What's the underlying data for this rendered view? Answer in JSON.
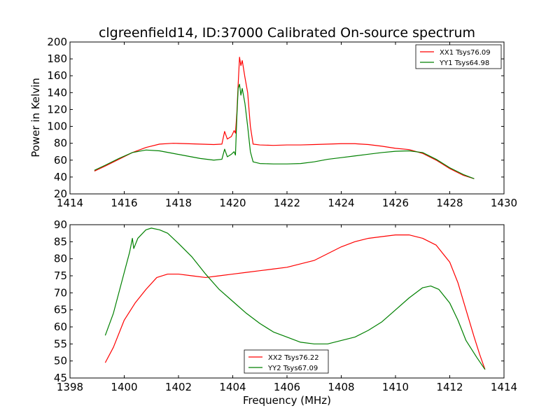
{
  "chart_data": [
    {
      "type": "line",
      "title": "clgreenfield14, ID:37000 Calibrated On-source spectrum",
      "xlabel": "",
      "ylabel": "Power in Kelvin",
      "xlim": [
        1414,
        1430
      ],
      "ylim": [
        20,
        200
      ],
      "xticks": [
        1414,
        1416,
        1418,
        1420,
        1422,
        1424,
        1426,
        1428,
        1430
      ],
      "yticks": [
        20,
        40,
        60,
        80,
        100,
        120,
        140,
        160,
        180,
        200
      ],
      "legend": "top-right",
      "grid": false,
      "series": [
        {
          "name": "XX1 Tsys76.09",
          "color": "#ff0000",
          "points": [
            [
              1414.9,
              47
            ],
            [
              1415.3,
              53
            ],
            [
              1415.8,
              61
            ],
            [
              1416.3,
              69
            ],
            [
              1416.8,
              75
            ],
            [
              1417.3,
              79
            ],
            [
              1417.8,
              80
            ],
            [
              1418.3,
              79.5
            ],
            [
              1418.8,
              79
            ],
            [
              1419.3,
              78.5
            ],
            [
              1419.6,
              79
            ],
            [
              1419.7,
              94
            ],
            [
              1419.8,
              85
            ],
            [
              1419.95,
              88
            ],
            [
              1420.05,
              95
            ],
            [
              1420.1,
              92
            ],
            [
              1420.15,
              115
            ],
            [
              1420.2,
              150
            ],
            [
              1420.25,
              182
            ],
            [
              1420.3,
              172
            ],
            [
              1420.35,
              178
            ],
            [
              1420.45,
              158
            ],
            [
              1420.55,
              140
            ],
            [
              1420.65,
              100
            ],
            [
              1420.75,
              79
            ],
            [
              1421,
              78
            ],
            [
              1421.5,
              77.5
            ],
            [
              1422,
              78
            ],
            [
              1422.5,
              78
            ],
            [
              1423,
              78.5
            ],
            [
              1423.5,
              79
            ],
            [
              1424,
              79.5
            ],
            [
              1424.5,
              79.5
            ],
            [
              1425,
              78.5
            ],
            [
              1425.5,
              76.5
            ],
            [
              1426,
              74
            ],
            [
              1426.5,
              72.5
            ],
            [
              1427,
              68
            ],
            [
              1427.5,
              60
            ],
            [
              1428,
              50
            ],
            [
              1428.5,
              42
            ],
            [
              1428.9,
              38
            ]
          ]
        },
        {
          "name": "YY1 Tsys64.98",
          "color": "#008000",
          "points": [
            [
              1414.9,
              48
            ],
            [
              1415.3,
              54
            ],
            [
              1415.8,
              62
            ],
            [
              1416.3,
              69
            ],
            [
              1416.8,
              72
            ],
            [
              1417.3,
              71
            ],
            [
              1417.8,
              68
            ],
            [
              1418.3,
              65
            ],
            [
              1418.8,
              62
            ],
            [
              1419.3,
              60
            ],
            [
              1419.6,
              61
            ],
            [
              1419.7,
              73
            ],
            [
              1419.8,
              64
            ],
            [
              1419.95,
              67
            ],
            [
              1420.05,
              70
            ],
            [
              1420.1,
              66
            ],
            [
              1420.15,
              110
            ],
            [
              1420.2,
              145
            ],
            [
              1420.25,
              150
            ],
            [
              1420.3,
              137
            ],
            [
              1420.35,
              145
            ],
            [
              1420.45,
              127
            ],
            [
              1420.55,
              100
            ],
            [
              1420.65,
              70
            ],
            [
              1420.75,
              58
            ],
            [
              1421,
              56
            ],
            [
              1421.5,
              55.5
            ],
            [
              1422,
              55.5
            ],
            [
              1422.5,
              56
            ],
            [
              1423,
              58
            ],
            [
              1423.5,
              61
            ],
            [
              1424,
              63
            ],
            [
              1424.5,
              65
            ],
            [
              1425,
              67
            ],
            [
              1425.5,
              69
            ],
            [
              1426,
              70.5
            ],
            [
              1426.5,
              71
            ],
            [
              1427,
              69
            ],
            [
              1427.5,
              61
            ],
            [
              1428,
              51
            ],
            [
              1428.5,
              43
            ],
            [
              1428.9,
              38
            ]
          ]
        }
      ]
    },
    {
      "type": "line",
      "title": "",
      "xlabel": "Frequency (MHz)",
      "ylabel": "",
      "xlim": [
        1398,
        1414
      ],
      "ylim": [
        45,
        90
      ],
      "xticks": [
        1398,
        1400,
        1402,
        1404,
        1406,
        1408,
        1410,
        1412,
        1414
      ],
      "yticks": [
        45,
        50,
        55,
        60,
        65,
        70,
        75,
        80,
        85,
        90
      ],
      "legend": "bottom-center",
      "grid": false,
      "series": [
        {
          "name": "XX2 Tsys76.22",
          "color": "#ff0000",
          "points": [
            [
              1399.3,
              49.5
            ],
            [
              1399.6,
              54
            ],
            [
              1400,
              62
            ],
            [
              1400.4,
              67
            ],
            [
              1400.8,
              71
            ],
            [
              1401.2,
              74.5
            ],
            [
              1401.6,
              75.5
            ],
            [
              1402,
              75.5
            ],
            [
              1402.5,
              75
            ],
            [
              1403,
              74.5
            ],
            [
              1403.5,
              75
            ],
            [
              1404,
              75.5
            ],
            [
              1404.5,
              76
            ],
            [
              1405,
              76.5
            ],
            [
              1405.5,
              77
            ],
            [
              1406,
              77.5
            ],
            [
              1406.5,
              78.5
            ],
            [
              1407,
              79.5
            ],
            [
              1407.5,
              81.5
            ],
            [
              1408,
              83.5
            ],
            [
              1408.5,
              85
            ],
            [
              1409,
              86
            ],
            [
              1409.5,
              86.5
            ],
            [
              1410,
              87
            ],
            [
              1410.5,
              87
            ],
            [
              1411,
              86
            ],
            [
              1411.5,
              84
            ],
            [
              1412,
              79
            ],
            [
              1412.3,
              73
            ],
            [
              1412.6,
              65
            ],
            [
              1412.9,
              57
            ],
            [
              1413.1,
              52
            ],
            [
              1413.3,
              47.5
            ]
          ]
        },
        {
          "name": "YY2 Tsys67.09",
          "color": "#008000",
          "points": [
            [
              1399.3,
              57.5
            ],
            [
              1399.6,
              64
            ],
            [
              1400,
              76
            ],
            [
              1400.2,
              82
            ],
            [
              1400.3,
              86
            ],
            [
              1400.35,
              83
            ],
            [
              1400.5,
              86
            ],
            [
              1400.8,
              88.5
            ],
            [
              1401,
              89
            ],
            [
              1401.3,
              88.5
            ],
            [
              1401.6,
              87.5
            ],
            [
              1402,
              84.5
            ],
            [
              1402.5,
              80.5
            ],
            [
              1403,
              75.5
            ],
            [
              1403.5,
              71
            ],
            [
              1404,
              67.5
            ],
            [
              1404.5,
              64
            ],
            [
              1405,
              61
            ],
            [
              1405.5,
              58.5
            ],
            [
              1406,
              57
            ],
            [
              1406.5,
              55.5
            ],
            [
              1407,
              55
            ],
            [
              1407.5,
              55
            ],
            [
              1408,
              56
            ],
            [
              1408.5,
              57
            ],
            [
              1409,
              59
            ],
            [
              1409.5,
              61.5
            ],
            [
              1410,
              65
            ],
            [
              1410.5,
              68.5
            ],
            [
              1411,
              71.5
            ],
            [
              1411.3,
              72
            ],
            [
              1411.6,
              71
            ],
            [
              1412,
              67
            ],
            [
              1412.3,
              62
            ],
            [
              1412.6,
              56
            ],
            [
              1413,
              51
            ],
            [
              1413.3,
              47.5
            ]
          ]
        }
      ]
    }
  ]
}
